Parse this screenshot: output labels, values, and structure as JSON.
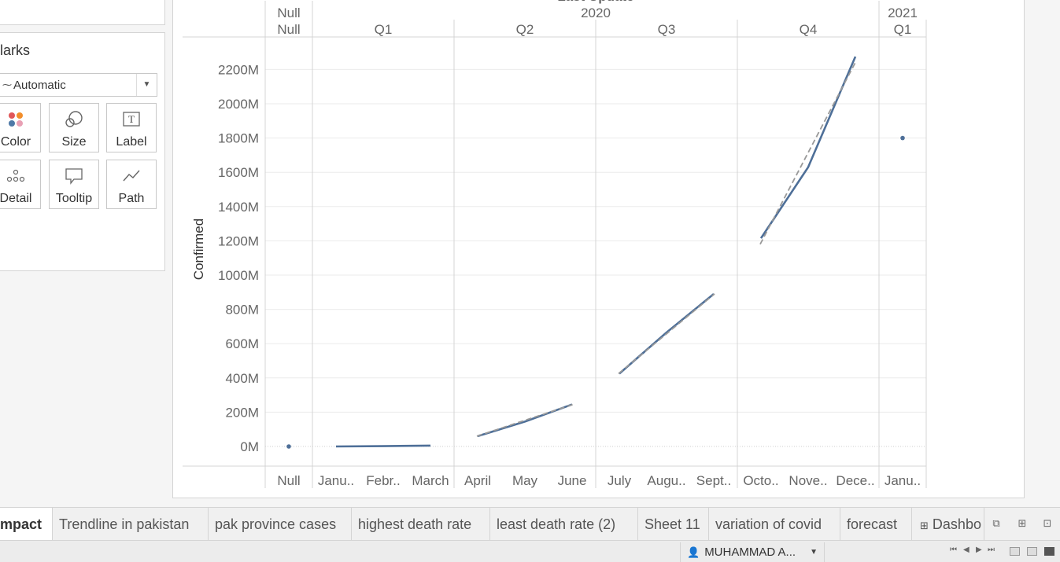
{
  "marks": {
    "title": "larks",
    "mark_type": "Automatic",
    "buttons": [
      {
        "label": "Color"
      },
      {
        "label": "Size"
      },
      {
        "label": "Label"
      },
      {
        "label": "Detail"
      },
      {
        "label": "Tooltip"
      },
      {
        "label": "Path"
      }
    ]
  },
  "tabs": [
    {
      "label": "mpact",
      "active": true
    },
    {
      "label": "Trendline in pakistan"
    },
    {
      "label": "pak province cases"
    },
    {
      "label": "highest death rate"
    },
    {
      "label": "least  death rate (2)"
    },
    {
      "label": "Sheet 11"
    },
    {
      "label": "variation of covid"
    },
    {
      "label": "forecast"
    },
    {
      "label": "Dashbo"
    }
  ],
  "status": {
    "user": "MUHAMMAD A..."
  },
  "colors": {
    "line": "#4e6f98",
    "trend": "#999999",
    "grid": "#ebebeb"
  },
  "chart_data": {
    "type": "line",
    "title": "Last Update",
    "ylabel": "Confirmed",
    "ylim": [
      0,
      2300
    ],
    "yticks": [
      "0M",
      "200M",
      "400M",
      "600M",
      "800M",
      "1000M",
      "1200M",
      "1400M",
      "1600M",
      "1800M",
      "2000M",
      "2200M"
    ],
    "year_headers": [
      {
        "label": "Null",
        "quarter": "Null",
        "months": [
          "Null"
        ]
      },
      {
        "label": "2020",
        "quarters": [
          {
            "label": "Q1",
            "months": [
              "Janu..",
              "Febr..",
              "March"
            ]
          },
          {
            "label": "Q2",
            "months": [
              "April",
              "May",
              "June"
            ]
          },
          {
            "label": "Q3",
            "months": [
              "July",
              "Augu..",
              "Sept.."
            ]
          },
          {
            "label": "Q4",
            "months": [
              "Octo..",
              "Nove..",
              "Dece.."
            ]
          }
        ]
      },
      {
        "label": "2021",
        "quarter": "Q1",
        "months": [
          "Janu.."
        ]
      }
    ],
    "series": [
      {
        "segment": "Null",
        "x": [
          "Null"
        ],
        "values": [
          0
        ]
      },
      {
        "segment": "2020 Q1",
        "x": [
          "Janu..",
          "Febr..",
          "March"
        ],
        "values": [
          0,
          2,
          5
        ]
      },
      {
        "segment": "2020 Q2",
        "x": [
          "April",
          "May",
          "June"
        ],
        "values": [
          60,
          145,
          245
        ]
      },
      {
        "segment": "2020 Q3",
        "x": [
          "July",
          "Augu..",
          "Sept.."
        ],
        "values": [
          425,
          665,
          890
        ]
      },
      {
        "segment": "2020 Q4",
        "x": [
          "Octo..",
          "Nove..",
          "Dece.."
        ],
        "values": [
          1215,
          1630,
          2275
        ]
      },
      {
        "segment": "2021 Q1",
        "x": [
          "Janu.."
        ],
        "values": [
          1800
        ]
      }
    ],
    "trendlines": [
      {
        "segment": "2020 Q2",
        "from": 60,
        "to": 245
      },
      {
        "segment": "2020 Q3",
        "from": 425,
        "to": 890
      },
      {
        "segment": "2020 Q4",
        "from": 1180,
        "to": 2250
      }
    ]
  }
}
